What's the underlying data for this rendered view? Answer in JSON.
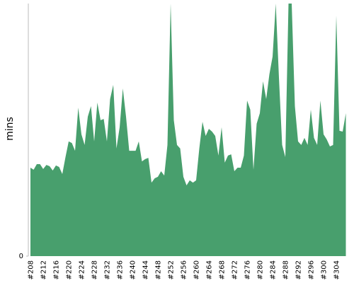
{
  "chart_data": {
    "type": "area",
    "y_label": "mins",
    "color": "#489f6d",
    "categories": [
      "#208",
      null,
      null,
      null,
      "#212",
      null,
      null,
      null,
      "#216",
      null,
      null,
      null,
      "#220",
      null,
      null,
      null,
      "#224",
      null,
      null,
      null,
      "#228",
      null,
      null,
      null,
      "#232",
      null,
      null,
      null,
      "#236",
      null,
      null,
      null,
      "#240",
      null,
      null,
      null,
      "#244",
      null,
      null,
      null,
      "#248",
      null,
      null,
      null,
      "#252",
      null,
      null,
      null,
      "#256",
      null,
      null,
      null,
      "#260",
      null,
      null,
      null,
      "#264",
      null,
      null,
      null,
      "#268",
      null,
      null,
      null,
      "#272",
      null,
      null,
      null,
      "#276",
      null,
      null,
      null,
      "#280",
      null,
      null,
      null,
      "#284",
      null,
      null,
      null,
      "#288",
      null,
      null,
      null,
      "#292",
      null,
      null,
      null,
      "#296",
      null,
      null,
      null,
      "#300",
      null,
      null,
      null,
      "#304",
      null,
      null,
      null
    ],
    "values": [
      35,
      34.2,
      36.4,
      36.4,
      34.5,
      36.1,
      35.6,
      33.9,
      35.9,
      35.3,
      32.5,
      39.2,
      45.4,
      44.8,
      41.7,
      58.8,
      48.2,
      44,
      55.2,
      59.4,
      45.4,
      60.8,
      53.8,
      54.3,
      45.4,
      62.2,
      67.8,
      42.6,
      51,
      66.4,
      55.2,
      41.7,
      41.7,
      41.7,
      45.4,
      37.5,
      38.4,
      38.9,
      29.1,
      30.8,
      31.4,
      33.6,
      31.9,
      44,
      100,
      53.8,
      44,
      42.6,
      31.4,
      28,
      30,
      29.1,
      30,
      42.6,
      53.2,
      47.6,
      50.4,
      49.3,
      47.6,
      39.8,
      51,
      37,
      39.8,
      40.3,
      33.6,
      35,
      35,
      39.8,
      61.6,
      58,
      34.2,
      52.4,
      56.6,
      69.2,
      62.2,
      72,
      79,
      100,
      70.6,
      44,
      39.2,
      100,
      100,
      59.4,
      45.4,
      44,
      46.8,
      44,
      58,
      46.8,
      44,
      61.6,
      48.2,
      46.2,
      43.4,
      44,
      95.2,
      49.6,
      49.3,
      56.6
    ],
    "ylim": [
      0,
      100
    ],
    "yticks": [
      0
    ]
  }
}
